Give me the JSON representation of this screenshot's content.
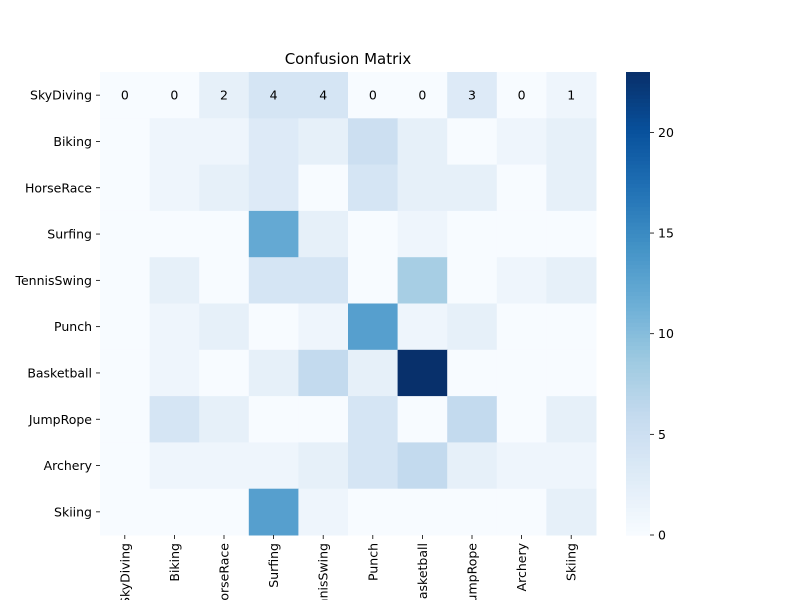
{
  "chart_data": {
    "type": "heatmap",
    "title": "Confusion Matrix",
    "xlabel": "",
    "ylabel": "",
    "row_labels": [
      "SkyDiving",
      "Biking",
      "HorseRace",
      "Surfing",
      "TennisSwing",
      "Punch",
      "Basketball",
      "JumpRope",
      "Archery",
      "Skiing"
    ],
    "col_labels": [
      "SkyDiving",
      "Biking",
      "HorseRace",
      "Surfing",
      "TennisSwing",
      "Punch",
      "Basketball",
      "JumpRope",
      "Archery",
      "Skiing"
    ],
    "values": [
      [
        0,
        0,
        2,
        4,
        4,
        0,
        0,
        3,
        0,
        1
      ],
      [
        0,
        1,
        1,
        3,
        2,
        5,
        2,
        0,
        1,
        2
      ],
      [
        0,
        1,
        2,
        3,
        0,
        4,
        2,
        2,
        0,
        2
      ],
      [
        0,
        0,
        0,
        12,
        2,
        0,
        1,
        0,
        0,
        0
      ],
      [
        0,
        2,
        0,
        4,
        4,
        0,
        8,
        0,
        1,
        2
      ],
      [
        0,
        1,
        2,
        0,
        1,
        13,
        1,
        2,
        0,
        0
      ],
      [
        0,
        1,
        0,
        2,
        6,
        2,
        23,
        0,
        0,
        0
      ],
      [
        0,
        4,
        2,
        0,
        0,
        4,
        0,
        6,
        0,
        2
      ],
      [
        0,
        1,
        1,
        1,
        2,
        4,
        6,
        2,
        1,
        1
      ],
      [
        0,
        0,
        0,
        13,
        1,
        0,
        0,
        0,
        0,
        2
      ]
    ],
    "annotated_row": 0,
    "colorbar": {
      "min": 0,
      "max": 23,
      "ticks": [
        0,
        5,
        10,
        15,
        20
      ],
      "colormap": "Blues"
    }
  }
}
